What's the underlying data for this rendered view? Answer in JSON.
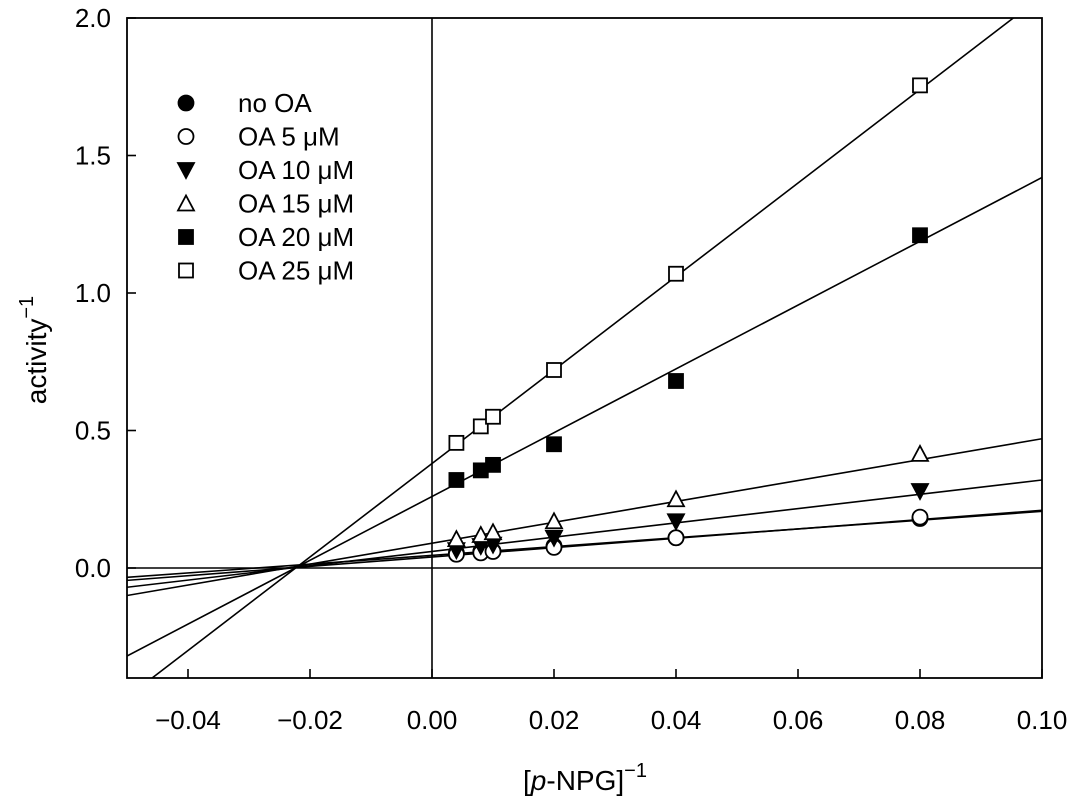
{
  "chart_data": {
    "type": "scatter",
    "title": "",
    "xlabel_parts": [
      "[",
      "p",
      "-NPG]",
      "−1"
    ],
    "ylabel_parts": [
      "activity",
      "−1"
    ],
    "xlim": [
      -0.05,
      0.1
    ],
    "ylim": [
      -0.4,
      2.0
    ],
    "x_ticks": [
      -0.04,
      -0.02,
      0.0,
      0.02,
      0.04,
      0.06,
      0.08,
      0.1
    ],
    "x_tick_labels": [
      "−0.04",
      "−0.02",
      "0.00",
      "0.02",
      "0.04",
      "0.06",
      "0.08",
      "0.10"
    ],
    "y_ticks": [
      0.0,
      0.5,
      1.0,
      1.5,
      2.0
    ],
    "y_tick_labels": [
      "0.0",
      "0.5",
      "1.0",
      "1.5",
      "2.0"
    ],
    "reference_lines": {
      "x_zero": true,
      "y_zero": true
    },
    "legend_position": "top-left",
    "series": [
      {
        "name": "no OA",
        "marker": "filled-circle",
        "x": [
          0.004,
          0.008,
          0.01,
          0.02,
          0.04,
          0.08
        ],
        "y": [
          0.055,
          0.06,
          0.062,
          0.08,
          0.11,
          0.18
        ],
        "fit": {
          "slope": 1.6,
          "intercept": 0.046
        }
      },
      {
        "name": "OA 5 μM",
        "marker": "open-circle",
        "x": [
          0.004,
          0.008,
          0.01,
          0.02,
          0.04,
          0.08
        ],
        "y": [
          0.05,
          0.055,
          0.06,
          0.075,
          0.11,
          0.185
        ],
        "fit": {
          "slope": 1.7,
          "intercept": 0.04
        }
      },
      {
        "name": "OA 10 μM",
        "marker": "filled-triangle-down",
        "x": [
          0.004,
          0.008,
          0.01,
          0.02,
          0.04,
          0.08
        ],
        "y": [
          0.065,
          0.08,
          0.085,
          0.11,
          0.17,
          0.28
        ],
        "fit": {
          "slope": 2.6,
          "intercept": 0.06
        }
      },
      {
        "name": "OA 15 μM",
        "marker": "open-triangle-up",
        "x": [
          0.004,
          0.008,
          0.01,
          0.02,
          0.04,
          0.08
        ],
        "y": [
          0.105,
          0.12,
          0.13,
          0.17,
          0.25,
          0.415
        ],
        "fit": {
          "slope": 3.8,
          "intercept": 0.09
        }
      },
      {
        "name": "OA 20 μM",
        "marker": "filled-square",
        "x": [
          0.004,
          0.008,
          0.01,
          0.02,
          0.04,
          0.08
        ],
        "y": [
          0.32,
          0.355,
          0.375,
          0.45,
          0.68,
          1.21
        ],
        "fit": {
          "slope": 11.6,
          "intercept": 0.26
        }
      },
      {
        "name": "OA 25 μM",
        "marker": "open-square",
        "x": [
          0.004,
          0.008,
          0.01,
          0.02,
          0.04,
          0.08
        ],
        "y": [
          0.455,
          0.515,
          0.55,
          0.72,
          1.07,
          1.755
        ],
        "fit": {
          "slope": 17.0,
          "intercept": 0.38
        }
      }
    ]
  }
}
